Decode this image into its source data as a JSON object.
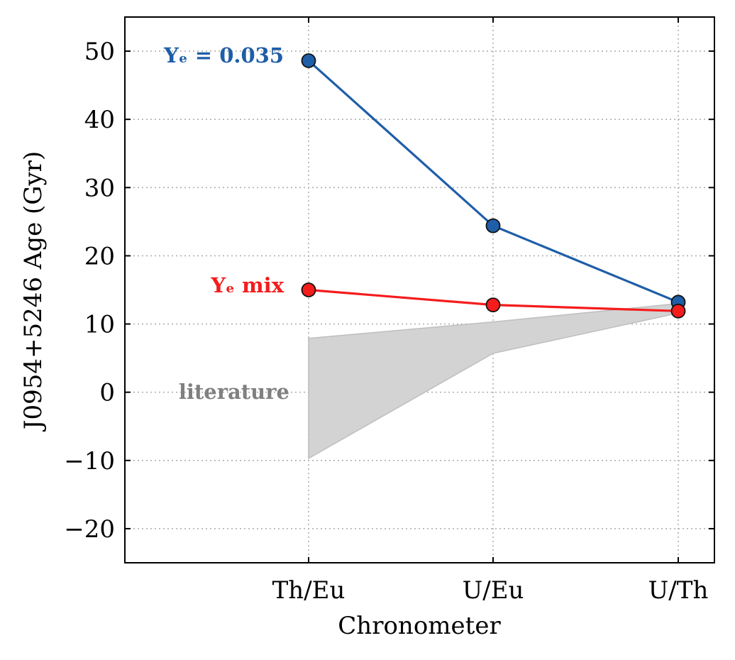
{
  "chart_data": {
    "type": "line",
    "categories": [
      "Th/Eu",
      "U/Eu",
      "U/Th"
    ],
    "xlabel": "Chronometer",
    "ylabel": "J0954+5246 Age (Gyr)",
    "ylim": [
      -25,
      55
    ],
    "yticks": [
      -20,
      -10,
      0,
      10,
      20,
      30,
      40,
      50
    ],
    "ytick_labels": [
      "−20",
      "−10",
      "0",
      "10",
      "20",
      "30",
      "40",
      "50"
    ],
    "grid": true,
    "series": [
      {
        "name": "Yₑ = 0.035",
        "values": [
          48.6,
          24.4,
          13.2
        ],
        "color": "#1f5ea8"
      },
      {
        "name": "Yₑ mix",
        "values": [
          15.0,
          12.8,
          11.9
        ],
        "color": "#f51c1c"
      }
    ],
    "band": {
      "name": "literature",
      "upper": [
        7.9,
        10.3,
        13.0
      ],
      "lower": [
        -9.7,
        5.7,
        11.6
      ],
      "color": "#bebebe"
    }
  }
}
